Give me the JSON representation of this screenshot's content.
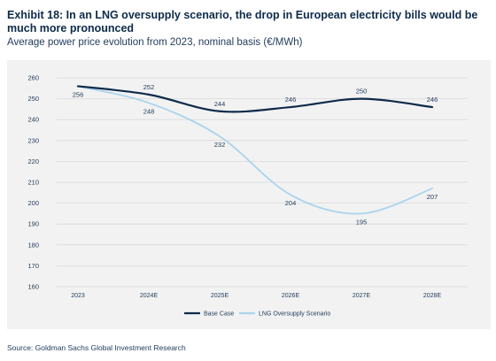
{
  "exhibit": {
    "title": "Exhibit 18: In an LNG oversupply scenario, the drop in European electricity bills would be much more pronounced",
    "subtitle": "Average power price evolution from 2023, nominal basis (€/MWh)"
  },
  "source": "Source: Goldman Sachs Global Investment Research",
  "colors": {
    "base_case": "#0d2b4a",
    "lng": "#a9d4ee",
    "grid": "#d9d9d9",
    "text": "#1f3a5a"
  },
  "chart_data": {
    "type": "line",
    "title": "Average power price evolution from 2023, nominal basis (€/MWh)",
    "xlabel": "",
    "ylabel": "",
    "categories": [
      "2023",
      "2024E",
      "2025E",
      "2026E",
      "2027E",
      "2028E"
    ],
    "ylim": [
      160,
      260
    ],
    "yticks": [
      160,
      170,
      180,
      190,
      200,
      210,
      220,
      230,
      240,
      250,
      260
    ],
    "grid": "horizontal",
    "legend_position": "bottom",
    "series": [
      {
        "name": "Base Case",
        "values": [
          256,
          252,
          244,
          246,
          250,
          246
        ],
        "labels": [
          "256",
          "252",
          "244",
          "246",
          "250",
          "246"
        ],
        "label_side": [
          "below",
          "above",
          "above",
          "above",
          "above",
          "above"
        ]
      },
      {
        "name": "LNG Oversupply Scenario",
        "values": [
          256,
          248,
          232,
          204,
          195,
          207
        ],
        "labels": [
          "",
          "248",
          "232",
          "204",
          "195",
          "207"
        ],
        "label_side": [
          "below",
          "below",
          "below",
          "below",
          "below",
          "below"
        ]
      }
    ]
  }
}
